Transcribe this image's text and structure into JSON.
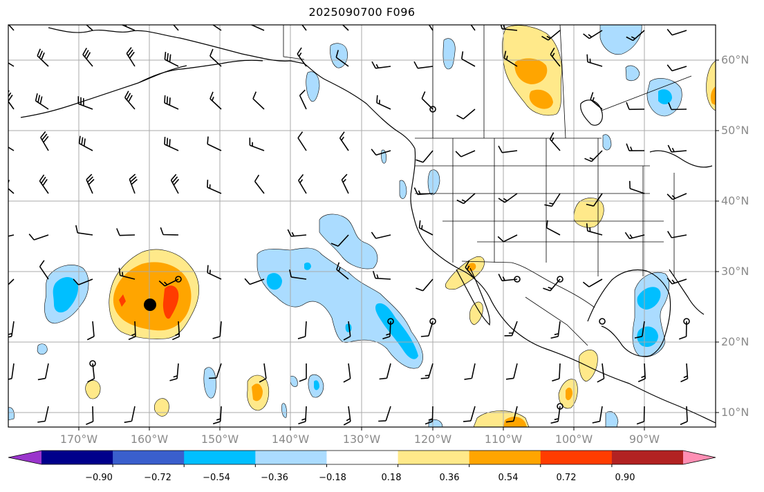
{
  "title": "2025090700 F096",
  "lat_labels": [
    "60°N",
    "50°N",
    "40°N",
    "30°N",
    "20°N",
    "10°N"
  ],
  "lon_labels": [
    "170°W",
    "160°W",
    "150°W",
    "140°W",
    "130°W",
    "120°W",
    "110°W",
    "100°W",
    "90°W"
  ],
  "colorbar": {
    "ticks": [
      "−0.90",
      "−0.72",
      "−0.54",
      "−0.36",
      "−0.18",
      "0.18",
      "0.36",
      "0.54",
      "0.72",
      "0.90"
    ],
    "colors": [
      "#9a35cc",
      "#00008b",
      "#3a5fcd",
      "#00bfff",
      "#abdcff",
      "#ffffff",
      "#ffe98a",
      "#ffa500",
      "#ff3c00",
      "#b22222",
      "#ff8fb4"
    ]
  },
  "colors": {
    "light_blue": "#abdcff",
    "deep_sky_blue": "#00bfff",
    "light_yellow": "#ffe98a",
    "orange": "#ffa500",
    "red_orange": "#ff3c00",
    "gridline": "#aaaaaa",
    "coastline": "#000000"
  },
  "map": {
    "lon_range": [
      -180,
      -80
    ],
    "lat_range": [
      8,
      65
    ],
    "gridlines": true,
    "projection": "plate-carree",
    "wind_barbs": true,
    "station_marker": {
      "lon": -160,
      "lat": 25.3,
      "shape": "filled-circle"
    }
  }
}
